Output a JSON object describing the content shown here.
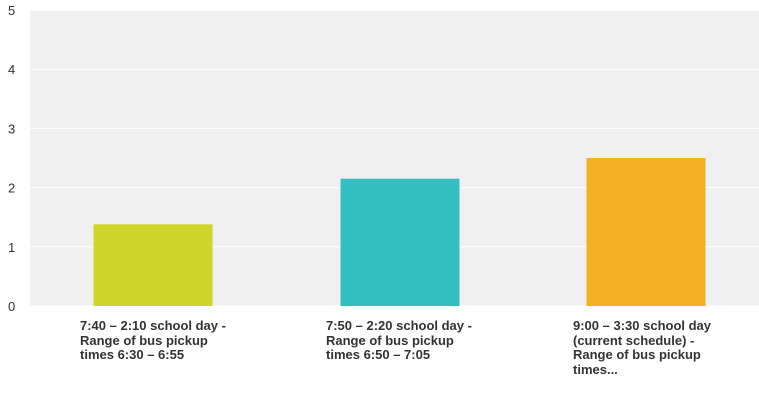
{
  "chart_data": {
    "type": "bar",
    "categories": [
      "7:40 – 2:10 school day - Range of bus pickup times 6:30 – 6:55",
      "7:50 – 2:20 school day - Range of bus pickup times 6:50 – 7:05",
      "9:00 – 3:30 school day (current schedule) - Range of bus pickup times..."
    ],
    "values": [
      1.38,
      2.15,
      2.5
    ],
    "colors": [
      "#cfd62b",
      "#33bfbf",
      "#f5b022"
    ],
    "ylim": [
      0,
      5
    ],
    "yticks": [
      0,
      1,
      2,
      3,
      4,
      5
    ],
    "grid": true,
    "background": "#f0f0f0",
    "title": "",
    "xlabel": "",
    "ylabel": ""
  }
}
